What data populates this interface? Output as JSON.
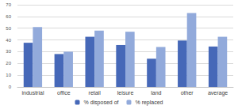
{
  "chart_data": {
    "type": "bar",
    "categories": [
      "industrial",
      "office",
      "retail",
      "leisure",
      "land",
      "other",
      "average"
    ],
    "series": [
      {
        "name": "% disposed of",
        "color": "#4668b8",
        "values": [
          37.6,
          28,
          42.7,
          35.7,
          24,
          39.5,
          34.4
        ]
      },
      {
        "name": "% replaced",
        "color": "#92aadb",
        "values": [
          51,
          30,
          48,
          47,
          34,
          63,
          42.7
        ]
      }
    ],
    "ylim": [
      0,
      70
    ],
    "yticks": [
      0,
      10,
      20,
      30,
      40,
      50,
      60,
      70
    ],
    "grid": true,
    "legend": "bottom"
  }
}
